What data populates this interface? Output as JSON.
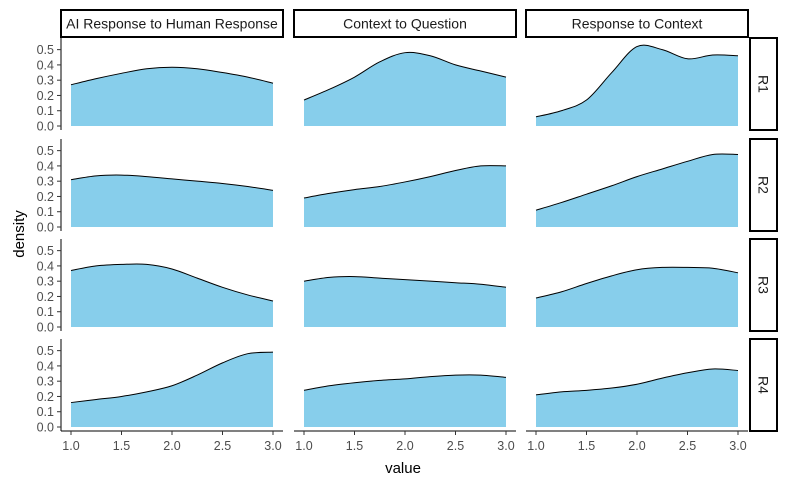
{
  "chart_data": {
    "type": "area",
    "xlabel": "value",
    "ylabel": "density",
    "xlim": [
      1.0,
      3.0
    ],
    "ylim": [
      0.0,
      0.5
    ],
    "x_ticks": [
      "1.0",
      "1.5",
      "2.0",
      "2.5",
      "3.0"
    ],
    "y_ticks": [
      "0.0",
      "0.1",
      "0.2",
      "0.3",
      "0.4",
      "0.5"
    ],
    "columns": [
      "AI Response to Human Response",
      "Context to Question",
      "Response to Context"
    ],
    "rows": [
      "R1",
      "R2",
      "R3",
      "R4"
    ],
    "fill_color": "#87CEEB",
    "line_color": "#000000",
    "x": [
      1.0,
      1.25,
      1.5,
      1.75,
      2.0,
      2.25,
      2.5,
      2.75,
      3.0
    ],
    "panels": [
      {
        "row": "R1",
        "column": "AI Response to Human Response",
        "values": [
          0.27,
          0.31,
          0.345,
          0.375,
          0.385,
          0.375,
          0.35,
          0.32,
          0.28
        ]
      },
      {
        "row": "R1",
        "column": "Context to Question",
        "values": [
          0.17,
          0.24,
          0.32,
          0.42,
          0.48,
          0.46,
          0.4,
          0.36,
          0.32
        ]
      },
      {
        "row": "R1",
        "column": "Response to Context",
        "values": [
          0.06,
          0.1,
          0.17,
          0.35,
          0.52,
          0.5,
          0.44,
          0.465,
          0.46
        ]
      },
      {
        "row": "R2",
        "column": "AI Response to Human Response",
        "values": [
          0.31,
          0.335,
          0.34,
          0.33,
          0.315,
          0.3,
          0.285,
          0.265,
          0.24
        ]
      },
      {
        "row": "R2",
        "column": "Context to Question",
        "values": [
          0.19,
          0.22,
          0.245,
          0.265,
          0.295,
          0.33,
          0.37,
          0.4,
          0.4
        ]
      },
      {
        "row": "R2",
        "column": "Response to Context",
        "values": [
          0.11,
          0.16,
          0.215,
          0.27,
          0.33,
          0.38,
          0.43,
          0.475,
          0.475
        ]
      },
      {
        "row": "R3",
        "column": "AI Response to Human Response",
        "values": [
          0.37,
          0.4,
          0.41,
          0.41,
          0.38,
          0.32,
          0.26,
          0.21,
          0.17
        ]
      },
      {
        "row": "R3",
        "column": "Context to Question",
        "values": [
          0.3,
          0.325,
          0.33,
          0.32,
          0.31,
          0.3,
          0.29,
          0.28,
          0.26
        ]
      },
      {
        "row": "R3",
        "column": "Response to Context",
        "values": [
          0.19,
          0.23,
          0.285,
          0.335,
          0.375,
          0.39,
          0.39,
          0.385,
          0.355
        ]
      },
      {
        "row": "R4",
        "column": "AI Response to Human Response",
        "values": [
          0.16,
          0.18,
          0.2,
          0.23,
          0.27,
          0.34,
          0.42,
          0.48,
          0.49
        ]
      },
      {
        "row": "R4",
        "column": "Context to Question",
        "values": [
          0.24,
          0.27,
          0.29,
          0.305,
          0.315,
          0.33,
          0.34,
          0.34,
          0.325
        ]
      },
      {
        "row": "R4",
        "column": "Response to Context",
        "values": [
          0.21,
          0.23,
          0.24,
          0.255,
          0.28,
          0.32,
          0.355,
          0.38,
          0.37
        ]
      }
    ]
  }
}
